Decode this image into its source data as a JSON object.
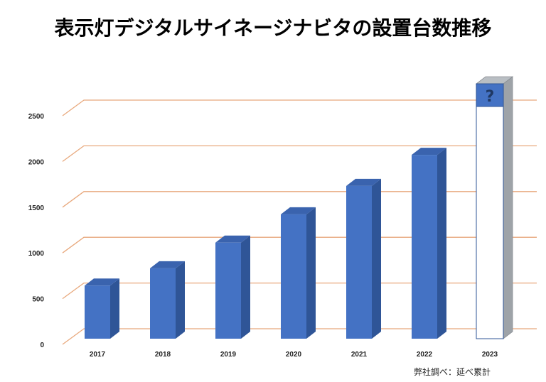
{
  "title": "表示灯デジタルサイネージナビタの設置台数推移",
  "source_note": "弊社調べ：延べ累計",
  "colors": {
    "bar_front": "#4472c4",
    "bar_side": "#2f5597",
    "bar_top": "#3a63ae",
    "grid": "#e8a87c",
    "unknown_side": "#9ea3a8",
    "unknown_top": "#b9bec3"
  },
  "chart_data": {
    "type": "bar",
    "title": "表示灯デジタルサイネージナビタの設置台数推移",
    "categories": [
      "2017",
      "2018",
      "2019",
      "2020",
      "2021",
      "2022",
      "2023"
    ],
    "values": [
      580,
      770,
      1050,
      1360,
      1670,
      2010,
      null
    ],
    "unknown_category": "2023",
    "unknown_marker": "?",
    "yticks": [
      0,
      500,
      1000,
      1500,
      2000,
      2500
    ],
    "ylim": [
      0,
      2500
    ],
    "grid": true
  }
}
